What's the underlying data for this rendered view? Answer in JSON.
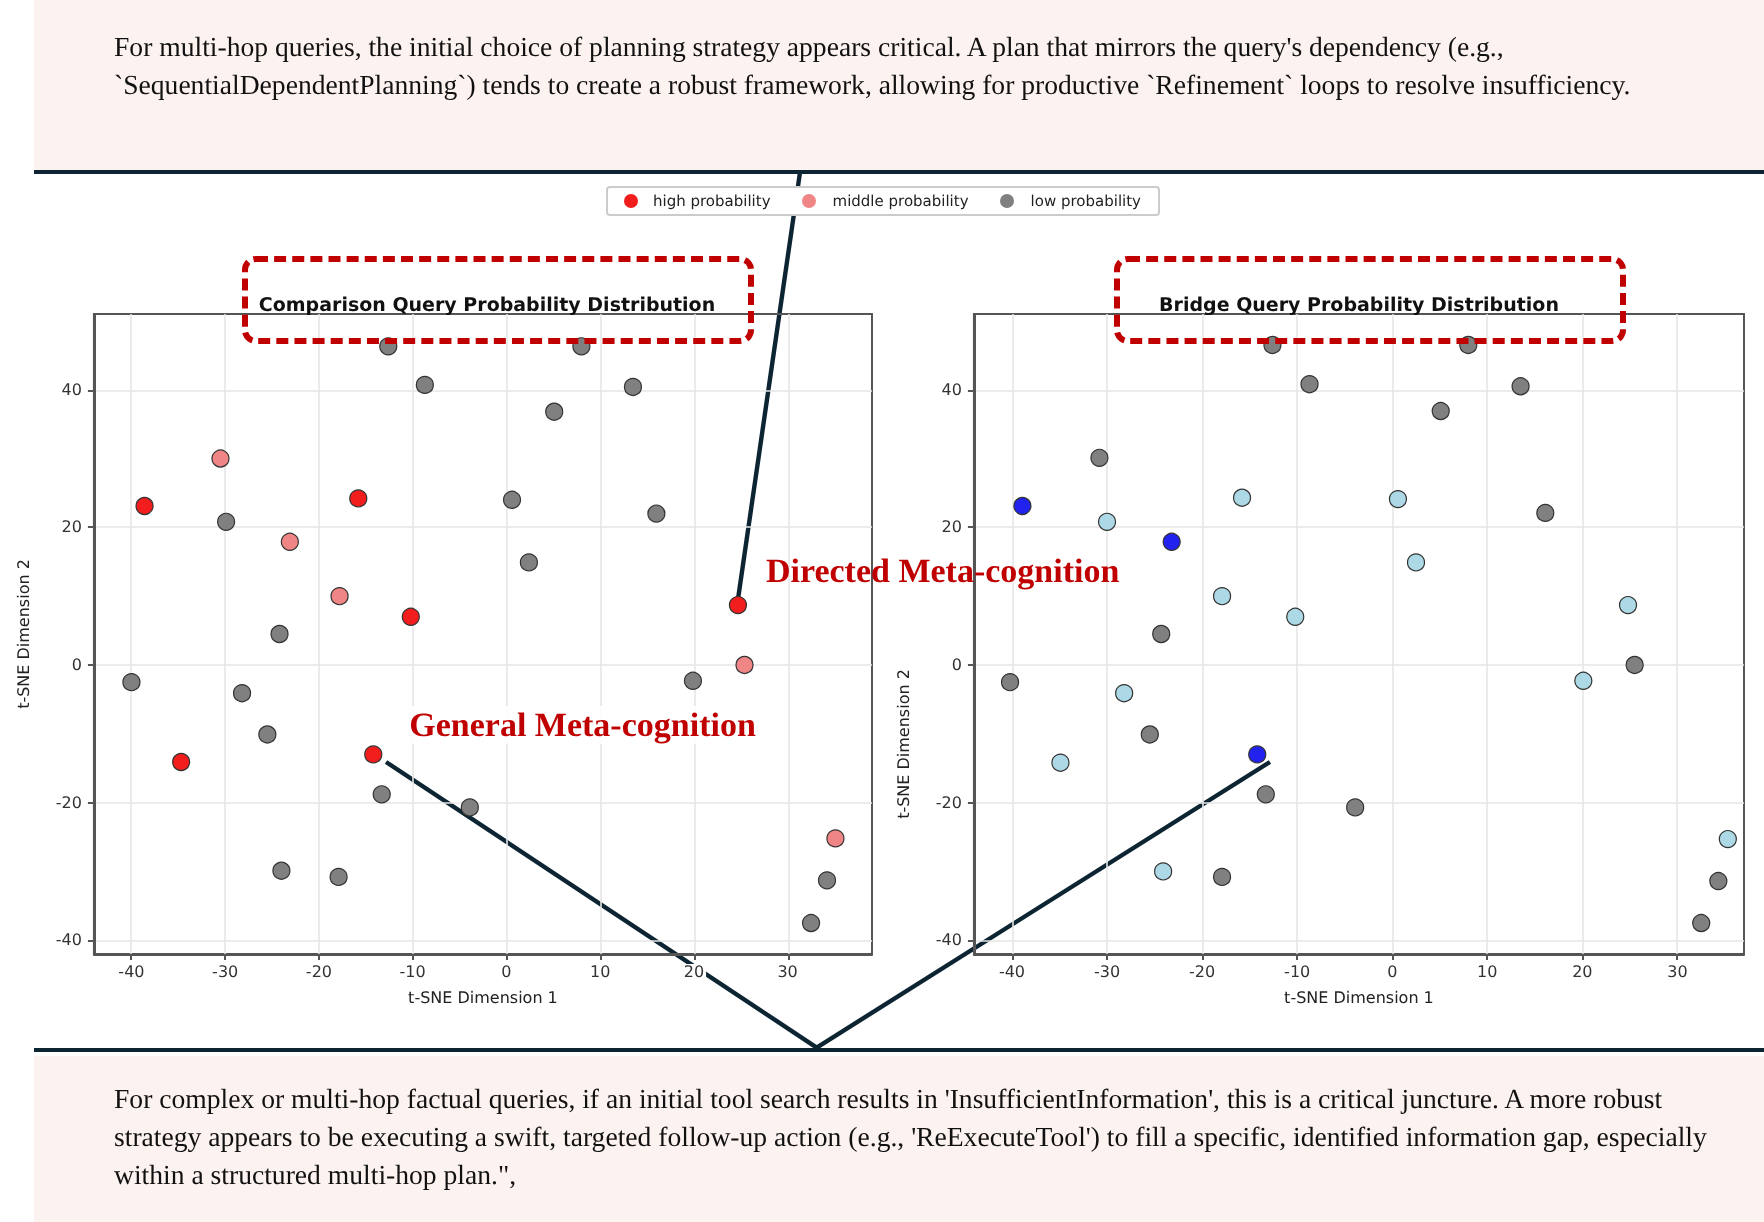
{
  "chart_data": [
    {
      "type": "scatter",
      "title": "Comparison Query Probability Distribution",
      "xlabel": "t-SNE Dimension 1",
      "ylabel": "t-SNE Dimension 2",
      "xlim": [
        -44,
        39
      ],
      "ylim": [
        -42,
        51
      ],
      "xticks": [
        -40,
        -30,
        -20,
        -10,
        0,
        10,
        20,
        30
      ],
      "yticks": [
        -40,
        -20,
        0,
        20,
        40
      ],
      "grid": true,
      "legend": "top",
      "marker": "circle",
      "annotations": [
        "For multi-hop queries, the initial choice of planning strategy appears critical. A plan that mirrors the query's dependency (e.g., `SequentialDependentPlanning`) tends to create a robust framework, allowing for productive `Refinement` loops to resolve insufficiency.",
        {
          "text": "Directed Meta-cognition",
          "x": 24.7,
          "y": 8.7
        },
        {
          "text": "General Meta-cognition",
          "x": -14.2,
          "y": -13.0
        }
      ],
      "series": [
        {
          "name": "high probability",
          "color": "#f21d1d",
          "x": [
            -38.6,
            -15.8,
            -10.2,
            24.7,
            -34.7,
            -14.2
          ],
          "values": [
            23.1,
            24.2,
            7.0,
            8.7,
            -14.1,
            -13.0
          ]
        },
        {
          "name": "middle probability",
          "color": "#ef8585",
          "x": [
            -30.5,
            -23.1,
            -17.8,
            25.4,
            35.1
          ],
          "values": [
            30.0,
            17.9,
            10.0,
            0.0,
            -25.2
          ]
        },
        {
          "name": "low probability",
          "color": "#808080",
          "x": [
            -12.6,
            -8.7,
            8.0,
            5.1,
            13.5,
            0.6,
            16.0,
            2.4,
            -29.9,
            -24.2,
            -40.0,
            -28.2,
            -25.5,
            -13.3,
            -3.9,
            -24.0,
            -17.9,
            19.9,
            34.2,
            32.5
          ],
          "values": [
            46.3,
            40.7,
            46.3,
            36.8,
            40.4,
            24.0,
            22.0,
            14.9,
            20.8,
            4.5,
            -2.5,
            -4.1,
            -10.1,
            -18.8,
            -20.7,
            -29.9,
            -30.8,
            -2.3,
            -31.3,
            -37.5
          ]
        }
      ]
    },
    {
      "type": "scatter",
      "title": "Bridge Query Probability Distribution",
      "xlabel": "t-SNE Dimension 1",
      "ylabel": "t-SNE Dimension 2",
      "xlim": [
        -44,
        37
      ],
      "ylim": [
        -42,
        51
      ],
      "xticks": [
        -40,
        -30,
        -20,
        -10,
        0,
        10,
        20,
        30
      ],
      "yticks": [
        -40,
        -20,
        0,
        20,
        40
      ],
      "grid": true,
      "marker": "circle",
      "annotations": [
        "For complex or multi-hop factual queries, if an initial tool search results in 'InsufficientInformation', this is a critical juncture. A more robust strategy appears to be executing a swift, targeted follow-up action (e.g., 'ReExecuteTool') to fill a specific, identified information gap, especially within a structured multi-hop plan.\","
      ],
      "series": [
        {
          "color": "#2222ee",
          "x": [
            -38.9,
            -23.2,
            -14.2
          ],
          "values": [
            23.1,
            17.9,
            -13.0
          ]
        },
        {
          "color": "#add8e6",
          "x": [
            -30.0,
            -15.8,
            0.6,
            2.5,
            -17.9,
            -10.2,
            24.8,
            20.1,
            -28.2,
            -34.9,
            -24.1,
            35.3
          ],
          "values": [
            20.8,
            24.3,
            24.1,
            14.9,
            10.0,
            7.0,
            8.7,
            -2.3,
            -4.1,
            -14.2,
            -30.0,
            -25.3
          ]
        },
        {
          "color": "#808080",
          "x": [
            -12.6,
            -8.7,
            8.0,
            5.1,
            13.5,
            16.1,
            -30.8,
            -24.3,
            -40.2,
            -25.5,
            -13.3,
            -3.9,
            -17.9,
            25.5,
            34.3,
            32.5
          ],
          "values": [
            46.5,
            40.8,
            46.5,
            36.9,
            40.5,
            22.1,
            30.1,
            4.5,
            -2.5,
            -10.1,
            -18.8,
            -20.7,
            -30.8,
            0.0,
            -31.4,
            -37.5
          ]
        }
      ]
    }
  ]
}
